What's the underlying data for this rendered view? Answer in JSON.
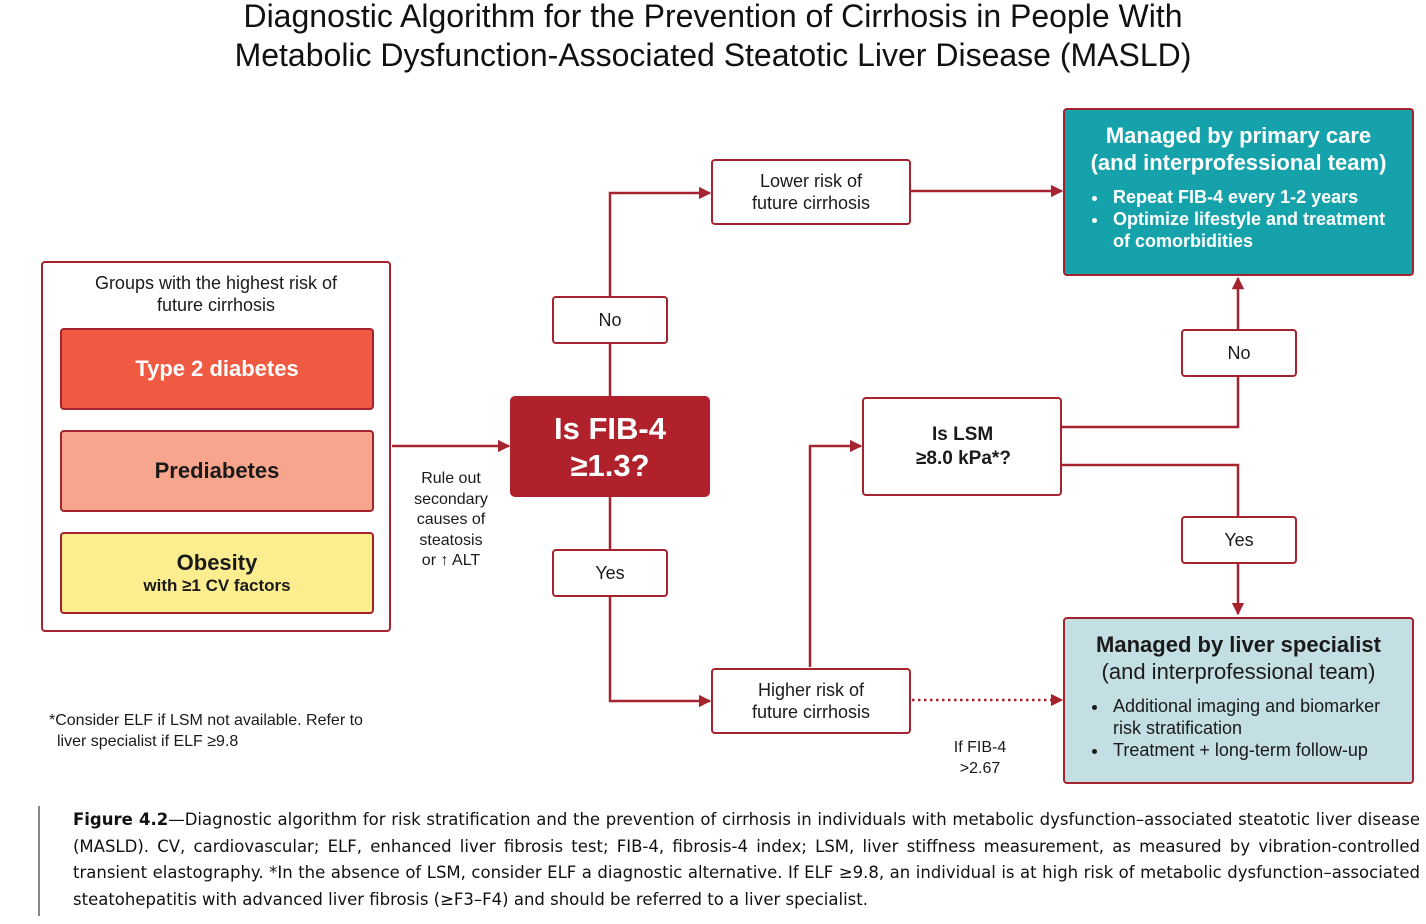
{
  "title": {
    "line1": "Diagnostic Algorithm for the Prevention of Cirrhosis in People With",
    "line2": "Metabolic Dysfunction-Associated Steatotic Liver Disease (MASLD)"
  },
  "risk_groups": {
    "heading_line1": "Groups with the highest risk of",
    "heading_line2": "future cirrhosis",
    "items": [
      {
        "label": "Type 2 diabetes",
        "sub": "",
        "color": "#f05a43"
      },
      {
        "label": "Prediabetes",
        "sub": "",
        "color": "#f7a68d"
      },
      {
        "label": "Obesity",
        "sub": "with ≥1 CV factors",
        "color": "#fcee8f"
      }
    ]
  },
  "rule_out": [
    "Rule out",
    "secondary",
    "causes of",
    "steatosis",
    "or ↑ ALT"
  ],
  "decision_fib4": {
    "line1": "Is FIB-4",
    "line2": "≥1.3?",
    "color": "#b0212c"
  },
  "branch_labels": {
    "no_top": "No",
    "yes_bottom": "Yes",
    "no_right": "No",
    "yes_right": "Yes"
  },
  "lower_risk": {
    "line1": "Lower risk of",
    "line2": "future cirrhosis"
  },
  "higher_risk": {
    "line1": "Higher risk of",
    "line2": "future cirrhosis"
  },
  "decision_lsm": {
    "line1": "Is LSM",
    "line2": "≥8.0 kPa*?"
  },
  "primary_care": {
    "title_line1": "Managed by primary care",
    "title_line2": "(and interprofessional team)",
    "bullets": [
      "Repeat FIB-4 every 1-2 years",
      "Optimize lifestyle and treatment of comorbidities"
    ],
    "color": "#16a2ab"
  },
  "liver_specialist": {
    "title_line1": "Managed by liver specialist",
    "title_line2": "(and interprofessional team)",
    "bullets": [
      "Additional imaging and biomarker risk stratification",
      "Treatment + long-term follow-up"
    ],
    "color": "#c3dfe3"
  },
  "fib4_threshold": {
    "line1": "If FIB-4",
    "line2": ">2.67"
  },
  "footnote": {
    "line1": "*Consider ELF  if LSM not available. Refer to",
    "line2": "liver specialist if ELF ≥9.8"
  },
  "caption": {
    "label": "Figure 4.2",
    "text": "—Diagnostic algorithm for risk stratification and the prevention of cirrhosis in individuals with metabolic dysfunction–associated steatotic liver disease (MASLD). CV, cardiovascular; ELF, enhanced liver fibrosis test; FIB-4, fibrosis-4 index; LSM, liver stiffness measurement, as measured by vibration-controlled transient elastography. *In the absence of LSM, consider ELF a diagnostic alternative. If ELF ≥9.8, an individual is at high risk of metabolic dysfunction–associated steatohepatitis with advanced liver fibrosis (≥F3–F4) and should be referred to a liver specialist."
  },
  "colors": {
    "accent": "#a5232e",
    "caption_rule": "#888888"
  }
}
